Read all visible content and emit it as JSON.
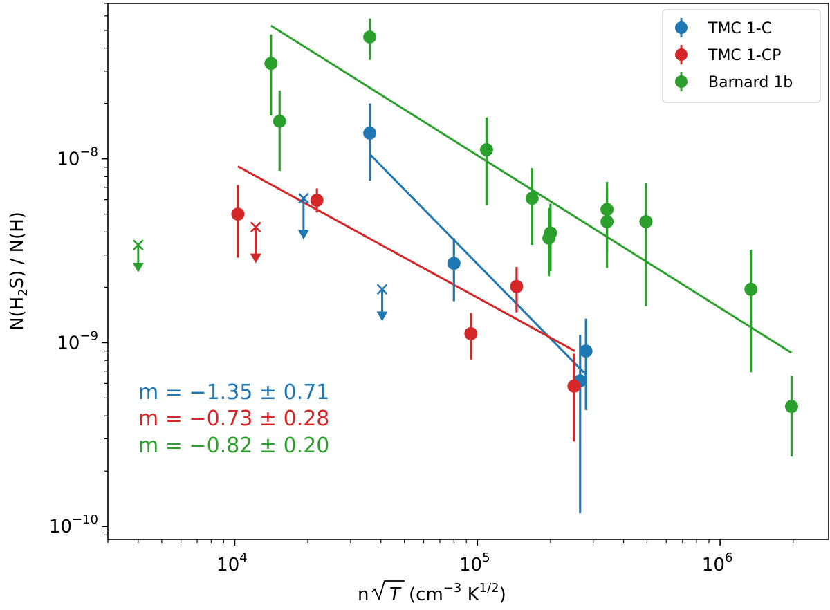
{
  "chart_data": {
    "type": "scatter",
    "xscale": "log",
    "yscale": "log",
    "xlim": [
      3000,
      2800000
    ],
    "ylim": [
      8.5e-11,
      7e-08
    ],
    "xlabel": {
      "base": "n",
      "sqrt": "T",
      "unit_pre": "(cm",
      "unit_exp1": "−3",
      "unit_mid": " K",
      "unit_exp2": "1/2",
      "unit_post": ")"
    },
    "ylabel": {
      "pre": "N(H",
      "sub": "2",
      "post": "S) / N(H)"
    },
    "xticks": [
      {
        "value": 10000,
        "base": "10",
        "exp": "4"
      },
      {
        "value": 100000,
        "base": "10",
        "exp": "5"
      },
      {
        "value": 1000000,
        "base": "10",
        "exp": "6"
      }
    ],
    "yticks": [
      {
        "value": 1e-10,
        "base": "10",
        "exp": "−10"
      },
      {
        "value": 1e-09,
        "base": "10",
        "exp": "−9"
      },
      {
        "value": 1e-08,
        "base": "10",
        "exp": "−8"
      }
    ],
    "series": [
      {
        "name": "TMC 1-C",
        "color": "#1f77b4",
        "points": [
          {
            "x": 36000,
            "y": 1.38e-08,
            "ylo": 7.6e-09,
            "yhi": 2e-08
          },
          {
            "x": 80000,
            "y": 2.7e-09,
            "ylo": 1.68e-09,
            "yhi": 3.7e-09
          },
          {
            "x": 265000,
            "y": 6.2e-10,
            "ylo": 1.18e-10,
            "yhi": 1.1e-09
          },
          {
            "x": 280000,
            "y": 9e-10,
            "ylo": 4.3e-10,
            "yhi": 1.35e-09
          }
        ],
        "upper_limits": [
          {
            "x": 19200,
            "y": 6.1e-09,
            "arrow_to": 3.7e-09
          },
          {
            "x": 40500,
            "y": 1.95e-09,
            "arrow_to": 1.33e-09
          }
        ],
        "fit": {
          "x": [
            36000,
            280000
          ],
          "y": [
            1.06e-08,
            6.7e-10
          ]
        },
        "slope_label": "m = −1.35 ± 0.71"
      },
      {
        "name": "TMC 1-CP",
        "color": "#d62728",
        "points": [
          {
            "x": 10300,
            "y": 5e-09,
            "ylo": 2.9e-09,
            "yhi": 7.2e-09
          },
          {
            "x": 21800,
            "y": 5.95e-09,
            "ylo": 5.1e-09,
            "yhi": 6.9e-09
          },
          {
            "x": 94000,
            "y": 1.12e-09,
            "ylo": 8.1e-10,
            "yhi": 1.45e-09
          },
          {
            "x": 145000,
            "y": 2.02e-09,
            "ylo": 1.46e-09,
            "yhi": 2.58e-09
          },
          {
            "x": 250000,
            "y": 5.8e-10,
            "ylo": 2.9e-10,
            "yhi": 8.7e-10
          }
        ],
        "upper_limits": [
          {
            "x": 12200,
            "y": 4.25e-09,
            "arrow_to": 2.75e-09
          }
        ],
        "fit": {
          "x": [
            10300,
            252000
          ],
          "y": [
            9.1e-09,
            9e-10
          ]
        },
        "slope_label": "m = −0.73 ± 0.28"
      },
      {
        "name": "Barnard 1b",
        "color": "#2ca02c",
        "points": [
          {
            "x": 14100,
            "y": 3.3e-08,
            "ylo": 1.72e-08,
            "yhi": 4.75e-08
          },
          {
            "x": 15300,
            "y": 1.6e-08,
            "ylo": 8.6e-09,
            "yhi": 2.35e-08
          },
          {
            "x": 36000,
            "y": 4.6e-08,
            "ylo": 3.45e-08,
            "yhi": 5.8e-08
          },
          {
            "x": 109000,
            "y": 1.12e-08,
            "ylo": 5.6e-09,
            "yhi": 1.68e-08
          },
          {
            "x": 168000,
            "y": 6.1e-09,
            "ylo": 3.4e-09,
            "yhi": 8.9e-09
          },
          {
            "x": 197000,
            "y": 3.7e-09,
            "ylo": 2.3e-09,
            "yhi": 5.4e-09
          },
          {
            "x": 200000,
            "y": 3.95e-09,
            "ylo": 2.45e-09,
            "yhi": 5.7e-09
          },
          {
            "x": 342000,
            "y": 5.3e-09,
            "ylo": 3.1e-09,
            "yhi": 7.5e-09
          },
          {
            "x": 342000,
            "y": 4.55e-09,
            "ylo": 2.55e-09,
            "yhi": 6.9e-09
          },
          {
            "x": 495000,
            "y": 4.55e-09,
            "ylo": 1.58e-09,
            "yhi": 7.4e-09
          },
          {
            "x": 1340000,
            "y": 1.95e-09,
            "ylo": 6.9e-10,
            "yhi": 3.2e-09
          },
          {
            "x": 1970000,
            "y": 4.5e-10,
            "ylo": 2.4e-10,
            "yhi": 6.6e-10
          }
        ],
        "upper_limits": [
          {
            "x": 4000,
            "y": 3.4e-09,
            "arrow_to": 2.45e-09
          }
        ],
        "fit": {
          "x": [
            14100,
            1970000
          ],
          "y": [
            5.3e-08,
            8.8e-10
          ]
        },
        "slope_label": "m = −0.82 ± 0.20"
      }
    ],
    "legend": {
      "location": "top-right",
      "entries": [
        "TMC 1-C",
        "TMC 1-CP",
        "Barnard 1b"
      ]
    }
  }
}
